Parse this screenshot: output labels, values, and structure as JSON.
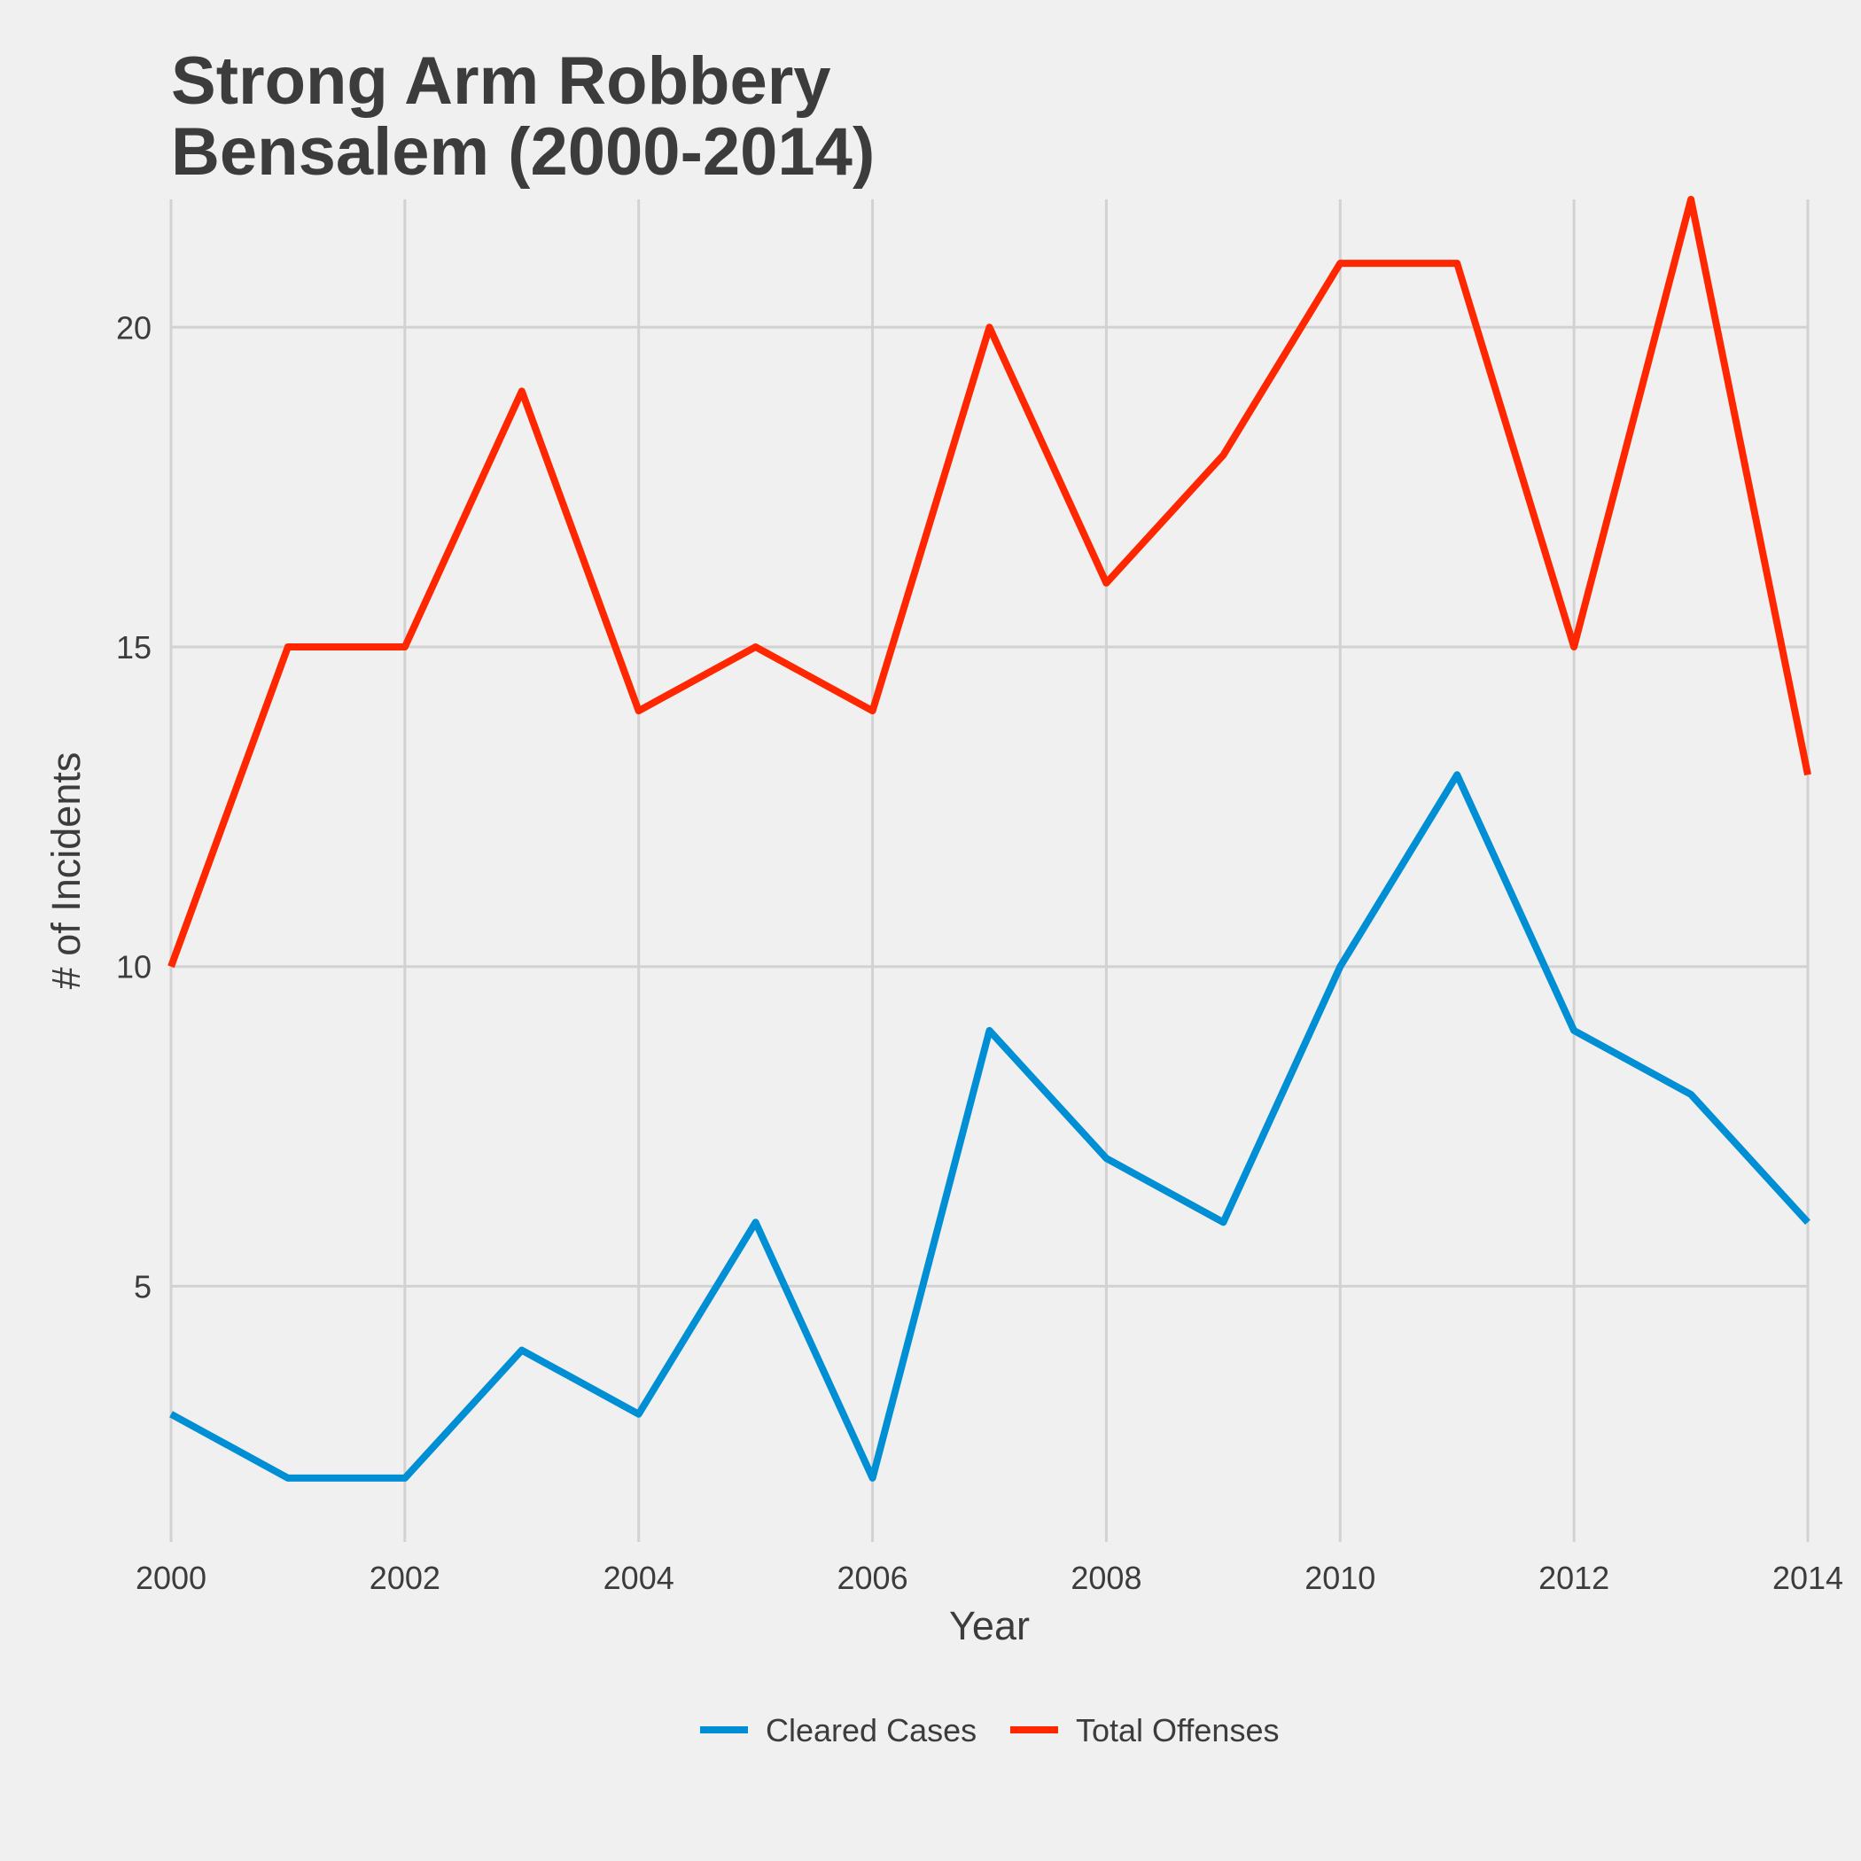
{
  "chart_data": {
    "type": "line",
    "title_lines": [
      "Strong Arm Robbery",
      "Bensalem (2000-2014)"
    ],
    "xlabel": "Year",
    "ylabel": "# of Incidents",
    "x": [
      2000,
      2001,
      2002,
      2003,
      2004,
      2005,
      2006,
      2007,
      2008,
      2009,
      2010,
      2011,
      2012,
      2013,
      2014
    ],
    "xlim": [
      2000,
      2014
    ],
    "ylim": [
      1,
      22
    ],
    "x_ticks": [
      2000,
      2002,
      2004,
      2006,
      2008,
      2010,
      2012,
      2014
    ],
    "y_ticks": [
      5,
      10,
      15,
      20
    ],
    "grid": true,
    "legend_position": "bottom",
    "series": [
      {
        "name": "Cleared Cases",
        "color": "#008fd5",
        "values": [
          3,
          2,
          2,
          4,
          3,
          6,
          2,
          9,
          7,
          6,
          10,
          13,
          9,
          8,
          6
        ]
      },
      {
        "name": "Total Offenses",
        "color": "#ff2700",
        "values": [
          10,
          15,
          15,
          19,
          14,
          15,
          14,
          20,
          16,
          18,
          21,
          21,
          15,
          22,
          13
        ]
      }
    ]
  }
}
